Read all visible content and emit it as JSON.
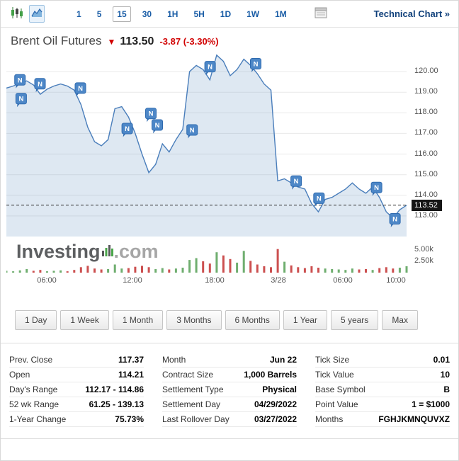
{
  "toolbar": {
    "intervals": [
      "1",
      "5",
      "15",
      "30",
      "1H",
      "5H",
      "1D",
      "1W",
      "1M"
    ],
    "active_interval": "15",
    "technical_chart_label": "Technical Chart »"
  },
  "header": {
    "title": "Brent Oil Futures",
    "direction": "down",
    "arrow": "▼",
    "price": "113.50",
    "change": "-3.87",
    "change_pct": "(-3.30%)"
  },
  "watermark": {
    "text_bold": "Investing",
    "text_light": ".com"
  },
  "ranges": [
    "1 Day",
    "1 Week",
    "1 Month",
    "3 Months",
    "6 Months",
    "1 Year",
    "5 years",
    "Max"
  ],
  "chart_data": {
    "type": "area",
    "title": "Brent Oil Futures 15-minute price with volume",
    "ylim": [
      112.0,
      121.0
    ],
    "grid": true,
    "legend": "none",
    "axis_side": "right",
    "price_ticks": [
      "120.00",
      "119.00",
      "118.00",
      "117.00",
      "116.00",
      "115.00",
      "114.00",
      "113.00"
    ],
    "price_tick_values": [
      120,
      119,
      118,
      117,
      116,
      115,
      114,
      113
    ],
    "last_price": 113.52,
    "last_price_label": "113.52",
    "x_ticks": [
      {
        "label": "06:00",
        "f": 0.101
      },
      {
        "label": "12:00",
        "f": 0.315
      },
      {
        "label": "18:00",
        "f": 0.52
      },
      {
        "label": "3/28",
        "f": 0.68
      },
      {
        "label": "06:00",
        "f": 0.84
      },
      {
        "label": "10:00",
        "f": 0.973
      }
    ],
    "prices": [
      119.2,
      119.3,
      119.45,
      119.55,
      119.35,
      118.9,
      119.15,
      119.3,
      119.4,
      119.3,
      119.1,
      118.4,
      117.3,
      116.6,
      116.4,
      116.7,
      118.2,
      118.3,
      117.8,
      117.0,
      116.0,
      115.1,
      115.5,
      116.5,
      116.1,
      116.7,
      117.2,
      120.0,
      120.3,
      120.1,
      119.6,
      120.8,
      120.5,
      119.8,
      120.1,
      120.6,
      120.3,
      119.9,
      119.4,
      119.1,
      114.7,
      114.8,
      114.6,
      114.4,
      114.3,
      113.6,
      113.2,
      113.8,
      113.9,
      114.1,
      114.3,
      114.6,
      114.3,
      114.1,
      114.4,
      113.9,
      113.2,
      112.9,
      113.3,
      113.52
    ],
    "volumes_k": [
      0.4,
      0.3,
      0.5,
      0.8,
      0.4,
      0.6,
      0.3,
      0.4,
      0.5,
      0.3,
      0.6,
      1.2,
      1.5,
      0.9,
      0.7,
      0.8,
      1.8,
      0.9,
      1.0,
      1.3,
      1.5,
      1.2,
      0.8,
      1.0,
      0.7,
      0.9,
      1.1,
      2.8,
      3.2,
      2.5,
      2.0,
      4.5,
      3.8,
      3.0,
      2.2,
      4.8,
      2.6,
      1.8,
      1.4,
      1.2,
      5.2,
      2.4,
      1.6,
      1.2,
      1.0,
      1.4,
      1.1,
      0.9,
      0.8,
      0.7,
      0.6,
      0.9,
      0.7,
      0.8,
      0.6,
      1.0,
      1.2,
      0.9,
      1.1,
      1.4
    ],
    "volume_ticks": [
      {
        "label": "5.00k",
        "v": 5.0
      },
      {
        "label": "2.50k",
        "v": 2.5
      }
    ],
    "news_markers": [
      {
        "f": 0.034,
        "p": 119.6
      },
      {
        "f": 0.084,
        "p": 119.41
      },
      {
        "f": 0.037,
        "p": 118.69
      },
      {
        "f": 0.185,
        "p": 119.2
      },
      {
        "f": 0.302,
        "p": 117.24
      },
      {
        "f": 0.361,
        "p": 117.97
      },
      {
        "f": 0.377,
        "p": 117.41
      },
      {
        "f": 0.464,
        "p": 117.17
      },
      {
        "f": 0.509,
        "p": 120.24
      },
      {
        "f": 0.623,
        "p": 120.38
      },
      {
        "f": 0.724,
        "p": 114.69
      },
      {
        "f": 0.781,
        "p": 113.86
      },
      {
        "f": 0.925,
        "p": 114.38
      },
      {
        "f": 0.971,
        "p": 112.86
      }
    ],
    "marker_letter": "N",
    "line_color": "#4a7ebb",
    "fill_color": "rgba(105, 148, 196, 0.22)",
    "vol_up_color": "#6fae6f",
    "vol_down_color": "#cc5050",
    "last_line_color": "#333333",
    "marker_fill": "#4d87c7",
    "marker_border": "#2f6bb0"
  },
  "info_table": {
    "columns": [
      {
        "rows": [
          {
            "label": "Prev. Close",
            "value": "117.37"
          },
          {
            "label": "Open",
            "value": "114.21"
          },
          {
            "label": "Day's Range",
            "value": "112.17 - 114.86"
          },
          {
            "label": "52 wk Range",
            "value": "61.25 - 139.13"
          },
          {
            "label": "1-Year Change",
            "value": "75.73%"
          }
        ]
      },
      {
        "rows": [
          {
            "label": "Month",
            "value": "Jun 22"
          },
          {
            "label": "Contract Size",
            "value": "1,000 Barrels"
          },
          {
            "label": "Settlement Type",
            "value": "Physical"
          },
          {
            "label": "Settlement Day",
            "value": "04/29/2022"
          },
          {
            "label": "Last Rollover Day",
            "value": "03/27/2022"
          }
        ]
      },
      {
        "rows": [
          {
            "label": "Tick Size",
            "value": "0.01"
          },
          {
            "label": "Tick Value",
            "value": "10"
          },
          {
            "label": "Base Symbol",
            "value": "B"
          },
          {
            "label": "Point Value",
            "value": "1 = $1000"
          },
          {
            "label": "Months",
            "value": "FGHJKMNQUVXZ"
          }
        ]
      }
    ]
  }
}
